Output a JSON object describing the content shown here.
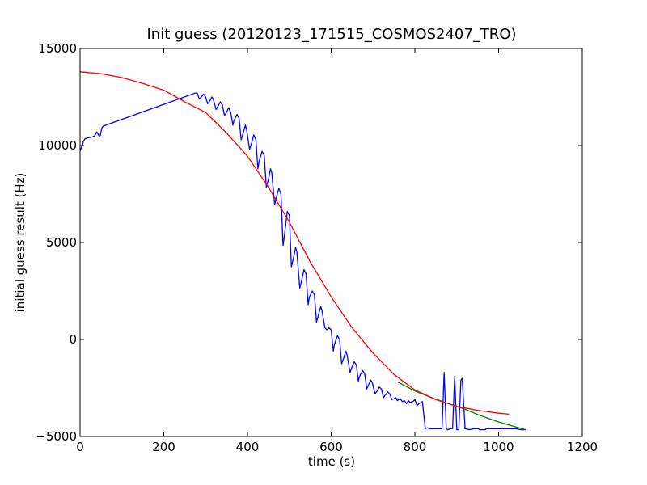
{
  "chart_data": {
    "type": "line",
    "title": "Init guess (20120123_171515_COSMOS2407_TRO)",
    "xlabel": "time (s)",
    "ylabel": "initial guess result (Hz)",
    "xlim": [
      0,
      1200
    ],
    "ylim": [
      -5000,
      15000
    ],
    "xticks": [
      0,
      200,
      400,
      600,
      800,
      1000,
      1200
    ],
    "yticks": [
      -5000,
      0,
      5000,
      10000,
      15000
    ],
    "xtick_labels": [
      "0",
      "200",
      "400",
      "600",
      "800",
      "1000",
      "1200"
    ],
    "ytick_labels": [
      "−5000",
      "0",
      "5000",
      "10000",
      "15000"
    ],
    "grid": false,
    "legend": "none",
    "series": [
      {
        "color": "#0000ff",
        "x": [
          0,
          3,
          5,
          8,
          12,
          20,
          25,
          30,
          35,
          40,
          45,
          48,
          52,
          55,
          275,
          280,
          285,
          290,
          295,
          300,
          305,
          310,
          315,
          318,
          325,
          330,
          335,
          340,
          345,
          350,
          355,
          360,
          365,
          368,
          375,
          380,
          385,
          390,
          395,
          398,
          405,
          410,
          415,
          420,
          425,
          428,
          435,
          440,
          445,
          450,
          455,
          458,
          465,
          470,
          475,
          480,
          485,
          488,
          495,
          500,
          505,
          510,
          515,
          518,
          525,
          530,
          535,
          540,
          545,
          548,
          555,
          560,
          565,
          570,
          575,
          578,
          585,
          590,
          595,
          600,
          605,
          608,
          615,
          620,
          625,
          630,
          635,
          638,
          645,
          650,
          655,
          660,
          665,
          668,
          675,
          680,
          685,
          690,
          695,
          698,
          705,
          710,
          715,
          720,
          725,
          728,
          735,
          740,
          745,
          750,
          755,
          758,
          765,
          770,
          775,
          780,
          785,
          788,
          795,
          800,
          805,
          810,
          815,
          818,
          825,
          830,
          835,
          840,
          845,
          848,
          855,
          860,
          865,
          870,
          875,
          878,
          885,
          890,
          895,
          900,
          905,
          910,
          913,
          920,
          930,
          940,
          948,
          950,
          952,
          954,
          960,
          965,
          968,
          970,
          972,
          975,
          985,
          988,
          990,
          991,
          993,
          995,
          1000,
          1020,
          1040,
          1055,
          1065
        ],
        "y": [
          9700,
          9900,
          10000,
          10200,
          10350,
          10400,
          10420,
          10450,
          10500,
          10700,
          10500,
          10500,
          10900,
          11000,
          12700,
          12700,
          12400,
          12500,
          12650,
          12500,
          12150,
          12300,
          12500,
          12400,
          11850,
          12050,
          12250,
          12100,
          11550,
          11700,
          11950,
          11700,
          11050,
          11300,
          11600,
          11400,
          10300,
          10650,
          11050,
          10800,
          9800,
          10150,
          10550,
          10300,
          8800,
          9200,
          9700,
          9500,
          7850,
          8250,
          8800,
          8600,
          6950,
          7400,
          7800,
          7500,
          4850,
          5300,
          6600,
          6400,
          3750,
          4200,
          4750,
          4500,
          2650,
          3100,
          3600,
          3400,
          1800,
          2200,
          2500,
          2300,
          900,
          1300,
          1700,
          1500,
          600,
          500,
          600,
          500,
          -600,
          -250,
          200,
          0,
          -1250,
          -950,
          -600,
          -800,
          -1700,
          -1400,
          -1150,
          -1300,
          -2150,
          -1900,
          -1600,
          -1750,
          -2550,
          -2300,
          -2100,
          -2200,
          -2800,
          -2650,
          -2450,
          -2550,
          -3000,
          -2900,
          -2700,
          -2800,
          -3100,
          -3050,
          -3000,
          -3150,
          -3050,
          -3200,
          -3150,
          -3300,
          -3150,
          -3250,
          -3200,
          -3100,
          -3400,
          -3300,
          -3250,
          -3200,
          -4600,
          -4550,
          -4600,
          -4600,
          -4600,
          -4600,
          -4600,
          -4600,
          -4600,
          -1700,
          -4600,
          -4650,
          -4600,
          -4600,
          -1900,
          -4650,
          -4650,
          -2100,
          -2000,
          -4600,
          -4650,
          -4600,
          -4600,
          -4600,
          -4600,
          -4650,
          -4650,
          -4650,
          -4650,
          -4600,
          -4600,
          -4600,
          -4600,
          -4600,
          -4600,
          -4600,
          -4600,
          -4600,
          -4600,
          -4600,
          -4600,
          -4650,
          -4650
        ]
      },
      {
        "color": "#008000",
        "x": [
          760,
          800,
          840,
          880,
          920,
          960,
          1000,
          1040,
          1065
        ],
        "y": [
          -2200,
          -2650,
          -3000,
          -3300,
          -3600,
          -3950,
          -4250,
          -4500,
          -4650
        ]
      },
      {
        "color": "#ff0000",
        "x": [
          0,
          50,
          100,
          150,
          200,
          250,
          300,
          350,
          400,
          450,
          500,
          550,
          600,
          650,
          700,
          750,
          800,
          850,
          900,
          950,
          1000,
          1025
        ],
        "y": [
          13800,
          13700,
          13500,
          13200,
          12850,
          12250,
          11700,
          10650,
          9450,
          7850,
          6050,
          4000,
          2200,
          600,
          -700,
          -1800,
          -2600,
          -3100,
          -3450,
          -3650,
          -3800,
          -3850
        ]
      }
    ]
  }
}
